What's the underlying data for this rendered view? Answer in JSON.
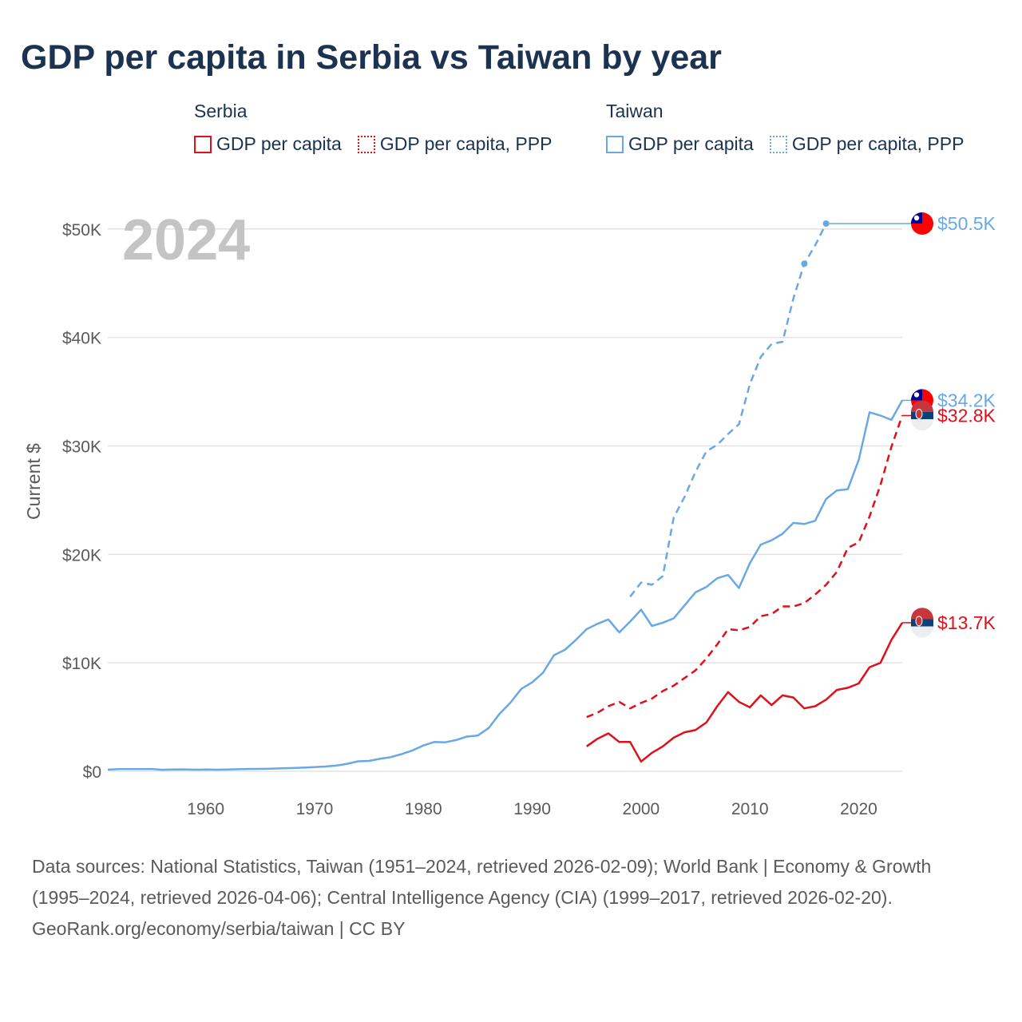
{
  "page": {
    "title": "GDP per capita in Serbia vs Taiwan by year",
    "footer_sources": "Data sources: National Statistics, Taiwan (1951–2024, retrieved 2026-02-09); World Bank | Economy & Growth (1995–2024, retrieved 2026-04-06); Central Intelligence Agency (CIA) (1999–2017, retrieved 2026-02-20).",
    "footer_credit": "GeoRank.org/economy/serbia/taiwan | CC BY"
  },
  "legend": {
    "serbia": {
      "heading": "Serbia",
      "gdp": "GDP per capita",
      "ppp": "GDP per capita, PPP"
    },
    "taiwan": {
      "heading": "Taiwan",
      "gdp": "GDP per capita",
      "ppp": "GDP per capita, PPP"
    }
  },
  "colors": {
    "serbia": "#e0101a",
    "taiwan": "#6aa8e4",
    "title": "#1b3350",
    "year_watermark": "#c4c4c4"
  },
  "chart_data": {
    "type": "line",
    "title": "GDP per capita in Serbia vs Taiwan by year",
    "ylabel": "Current $",
    "xlabel": "",
    "year_label": "2024",
    "xlim": [
      1951,
      2024
    ],
    "ylim": [
      0,
      50500
    ],
    "grid": true,
    "x_ticks": [
      1960,
      1970,
      1980,
      1990,
      2000,
      2010,
      2020
    ],
    "y_ticks": [
      {
        "value": 0,
        "label": "$0"
      },
      {
        "value": 10000,
        "label": "$10K"
      },
      {
        "value": 20000,
        "label": "$20K"
      },
      {
        "value": 30000,
        "label": "$30K"
      },
      {
        "value": 40000,
        "label": "$40K"
      },
      {
        "value": 50000,
        "label": "$50K"
      }
    ],
    "series": [
      {
        "name": "Taiwan GDP per capita, PPP",
        "country": "taiwan",
        "style": "dashed",
        "markers": true,
        "end_label": "$50.5K",
        "x": [
          1999,
          2000,
          2001,
          2002,
          2003,
          2004,
          2005,
          2006,
          2007,
          2008,
          2009,
          2010,
          2011,
          2012,
          2013,
          2014,
          2015,
          2016,
          2017
        ],
        "values": [
          16100,
          17400,
          17200,
          18000,
          23400,
          25300,
          27600,
          29500,
          30100,
          31100,
          32000,
          35700,
          38200,
          39400,
          39600,
          43600,
          46800,
          48500,
          50500
        ]
      },
      {
        "name": "Taiwan GDP per capita",
        "country": "taiwan",
        "style": "solid",
        "markers": false,
        "end_label": "$34.2K",
        "x": [
          1951,
          1952,
          1953,
          1954,
          1955,
          1956,
          1957,
          1958,
          1959,
          1960,
          1961,
          1962,
          1963,
          1964,
          1965,
          1966,
          1967,
          1968,
          1969,
          1970,
          1971,
          1972,
          1973,
          1974,
          1975,
          1976,
          1977,
          1978,
          1979,
          1980,
          1981,
          1982,
          1983,
          1984,
          1985,
          1986,
          1987,
          1988,
          1989,
          1990,
          1991,
          1992,
          1993,
          1994,
          1995,
          1996,
          1997,
          1998,
          1999,
          2000,
          2001,
          2002,
          2003,
          2004,
          2005,
          2006,
          2007,
          2008,
          2009,
          2010,
          2011,
          2012,
          2013,
          2014,
          2015,
          2016,
          2017,
          2018,
          2019,
          2020,
          2021,
          2022,
          2023,
          2024
        ],
        "values": [
          150,
          200,
          200,
          200,
          210,
          140,
          170,
          180,
          150,
          160,
          150,
          170,
          190,
          210,
          220,
          240,
          270,
          300,
          340,
          390,
          440,
          520,
          690,
          920,
          960,
          1150,
          1300,
          1580,
          1920,
          2380,
          2700,
          2670,
          2880,
          3200,
          3300,
          3990,
          5300,
          6330,
          7600,
          8200,
          9100,
          10700,
          11200,
          12100,
          13100,
          13600,
          14000,
          12800,
          13800,
          14900,
          13400,
          13700,
          14100,
          15300,
          16500,
          17000,
          17800,
          18100,
          16900,
          19200,
          20900,
          21300,
          21900,
          22900,
          22800,
          23100,
          25100,
          25900,
          26000,
          28700,
          33100,
          32800,
          32400,
          34200
        ]
      },
      {
        "name": "Serbia GDP per capita, PPP",
        "country": "serbia",
        "style": "dashed",
        "markers": false,
        "end_label": "$32.8K",
        "x": [
          1995,
          1996,
          1997,
          1998,
          1999,
          2000,
          2001,
          2002,
          2003,
          2004,
          2005,
          2006,
          2007,
          2008,
          2009,
          2010,
          2011,
          2012,
          2013,
          2014,
          2015,
          2016,
          2017,
          2018,
          2019,
          2020,
          2021,
          2022,
          2023,
          2024
        ],
        "values": [
          5000,
          5400,
          6000,
          6400,
          5800,
          6300,
          6700,
          7400,
          7900,
          8600,
          9300,
          10400,
          11700,
          13100,
          13000,
          13300,
          14300,
          14500,
          15200,
          15200,
          15500,
          16300,
          17200,
          18400,
          20600,
          21100,
          23500,
          26400,
          29900,
          32800
        ]
      },
      {
        "name": "Serbia GDP per capita",
        "country": "serbia",
        "style": "solid",
        "markers": false,
        "end_label": "$13.7K",
        "x": [
          1995,
          1996,
          1997,
          1998,
          1999,
          2000,
          2001,
          2002,
          2003,
          2004,
          2005,
          2006,
          2007,
          2008,
          2009,
          2010,
          2011,
          2012,
          2013,
          2014,
          2015,
          2016,
          2017,
          2018,
          2019,
          2020,
          2021,
          2022,
          2023,
          2024
        ],
        "values": [
          2300,
          3000,
          3500,
          2700,
          2700,
          900,
          1700,
          2300,
          3100,
          3600,
          3800,
          4500,
          6000,
          7300,
          6400,
          5900,
          7000,
          6100,
          7000,
          6800,
          5800,
          6000,
          6600,
          7500,
          7700,
          8100,
          9600,
          10000,
          12100,
          13700
        ]
      }
    ]
  }
}
